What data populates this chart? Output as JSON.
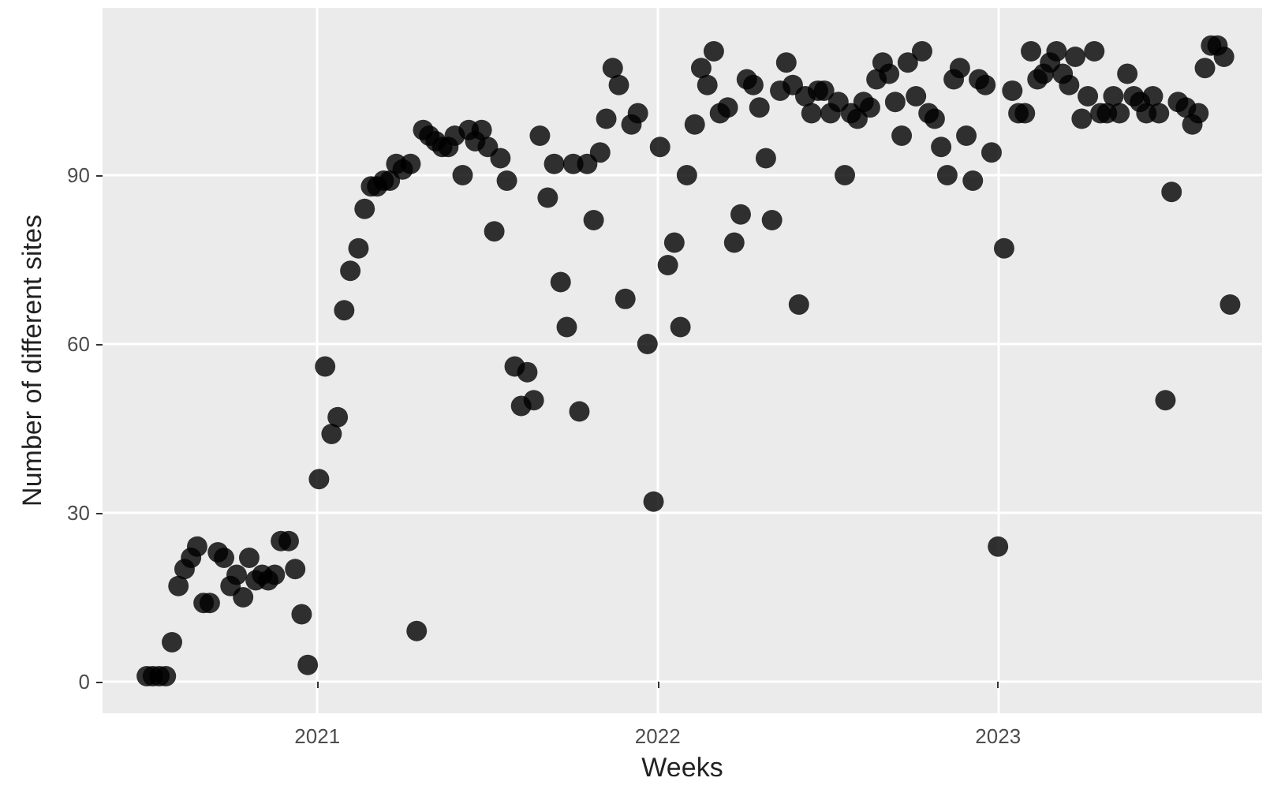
{
  "chart_data": {
    "type": "scatter",
    "xlabel": "Weeks",
    "ylabel": "Number of different sites",
    "xlim": [
      2020.369,
      2023.776
    ],
    "ylim": [
      -5.6,
      119.7
    ],
    "xticks": [
      2021,
      2022,
      2023
    ],
    "yticks": [
      0,
      30,
      60,
      90
    ],
    "grid": true,
    "marker": "circle",
    "x": [
      2020.499,
      2020.517,
      2020.536,
      2020.555,
      2020.573,
      2020.592,
      2020.61,
      2020.629,
      2020.647,
      2020.666,
      2020.684,
      2020.708,
      2020.726,
      2020.745,
      2020.763,
      2020.782,
      2020.8,
      2020.819,
      2020.838,
      2020.856,
      2020.875,
      2020.893,
      2020.916,
      2020.935,
      2020.954,
      2020.972,
      2021.005,
      2021.023,
      2021.042,
      2021.06,
      2021.079,
      2021.097,
      2021.121,
      2021.139,
      2021.158,
      2021.176,
      2021.195,
      2021.213,
      2021.232,
      2021.251,
      2021.274,
      2021.292,
      2021.311,
      2021.329,
      2021.348,
      2021.367,
      2021.385,
      2021.404,
      2021.427,
      2021.445,
      2021.464,
      2021.483,
      2021.501,
      2021.52,
      2021.538,
      2021.557,
      2021.58,
      2021.599,
      2021.617,
      2021.636,
      2021.654,
      2021.677,
      2021.696,
      2021.715,
      2021.733,
      2021.752,
      2021.77,
      2021.793,
      2021.812,
      2021.831,
      2021.849,
      2021.868,
      2021.886,
      2021.905,
      2021.923,
      2021.942,
      2021.97,
      2021.988,
      2022.007,
      2022.03,
      2022.049,
      2022.067,
      2022.086,
      2022.109,
      2022.128,
      2022.146,
      2022.165,
      2022.183,
      2022.206,
      2022.225,
      2022.244,
      2022.262,
      2022.281,
      2022.299,
      2022.318,
      2022.336,
      2022.36,
      2022.378,
      2022.397,
      2022.415,
      2022.434,
      2022.452,
      2022.471,
      2022.489,
      2022.508,
      2022.531,
      2022.55,
      2022.568,
      2022.587,
      2022.605,
      2022.624,
      2022.643,
      2022.661,
      2022.68,
      2022.698,
      2022.717,
      2022.735,
      2022.759,
      2022.777,
      2022.796,
      2022.814,
      2022.833,
      2022.851,
      2022.87,
      2022.888,
      2022.907,
      2022.926,
      2022.944,
      2022.963,
      2022.981,
      2023.0,
      2023.018,
      2023.042,
      2023.06,
      2023.079,
      2023.097,
      2023.116,
      2023.134,
      2023.153,
      2023.172,
      2023.19,
      2023.209,
      2023.227,
      2023.246,
      2023.264,
      2023.283,
      2023.301,
      2023.32,
      2023.339,
      2023.357,
      2023.38,
      2023.399,
      2023.417,
      2023.436,
      2023.455,
      2023.473,
      2023.492,
      2023.51,
      2023.529,
      2023.552,
      2023.571,
      2023.589,
      2023.608,
      2023.626,
      2023.645,
      2023.664,
      2023.682
    ],
    "series": [
      {
        "color": "#000000",
        "values": [
          1,
          1,
          1,
          1,
          7,
          17,
          20,
          22,
          24,
          14,
          14,
          23,
          22,
          17,
          19,
          15,
          22,
          18,
          19,
          18,
          19,
          25,
          25,
          20,
          12,
          3,
          36,
          56,
          44,
          47,
          66,
          73,
          77,
          84,
          88,
          88,
          89,
          89,
          92,
          91,
          92,
          9,
          98,
          97,
          96,
          95,
          95,
          97,
          90,
          98,
          96,
          98,
          95,
          80,
          93,
          89,
          56,
          49,
          55,
          50,
          97,
          86,
          92,
          71,
          63,
          92,
          48,
          92,
          82,
          94,
          100,
          109,
          106,
          68,
          99,
          101,
          60,
          32,
          95,
          74,
          78,
          63,
          90,
          99,
          109,
          106,
          112,
          101,
          102,
          78,
          83,
          107,
          106,
          102,
          93,
          82,
          105,
          110,
          106,
          67,
          104,
          101,
          105,
          105,
          101,
          103,
          90,
          101,
          100,
          103,
          102,
          107,
          110,
          108,
          103,
          97,
          110,
          104,
          112,
          101,
          100,
          95,
          90,
          107,
          109,
          97,
          89,
          107,
          106,
          94,
          24,
          77,
          105,
          101,
          101,
          112,
          107,
          108,
          110,
          112,
          108,
          106,
          111,
          100,
          104,
          112,
          101,
          101,
          104,
          101,
          108,
          104,
          103,
          101,
          104,
          101,
          50,
          87,
          103,
          102,
          99,
          101,
          109,
          113,
          113,
          111,
          67
        ]
      }
    ]
  }
}
